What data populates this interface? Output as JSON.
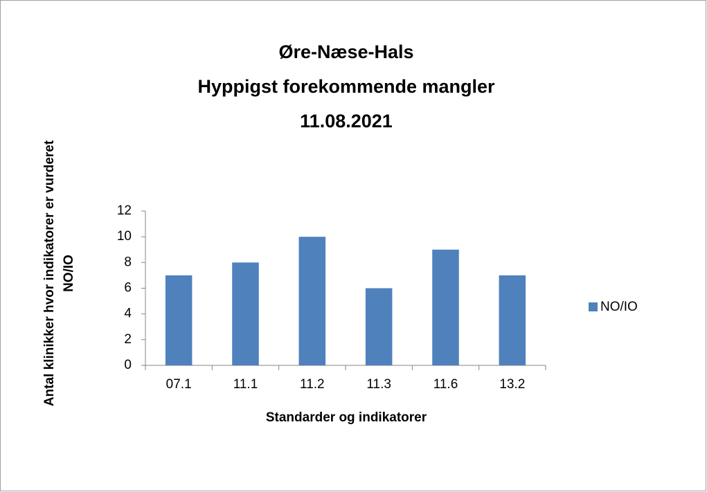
{
  "chart_data": {
    "type": "bar",
    "title": [
      "Øre-Næse-Hals",
      "Hyppigst forekommende mangler",
      "11.08.2021"
    ],
    "xlabel": "Standarder og indikatorer",
    "ylabel": [
      "Antal klinikker hvor indikatorer er vurderet",
      "NO/IO"
    ],
    "categories": [
      "07.1",
      "11.1",
      "11.2",
      "11.3",
      "11.6",
      "13.2"
    ],
    "series": [
      {
        "name": "NO/IO",
        "color": "#4f81bd",
        "values": [
          7,
          8,
          10,
          6,
          9,
          7
        ]
      }
    ],
    "ylim": [
      0,
      12
    ],
    "yticks": [
      0,
      2,
      4,
      6,
      8,
      10,
      12
    ],
    "grid": false,
    "legend": "right"
  }
}
